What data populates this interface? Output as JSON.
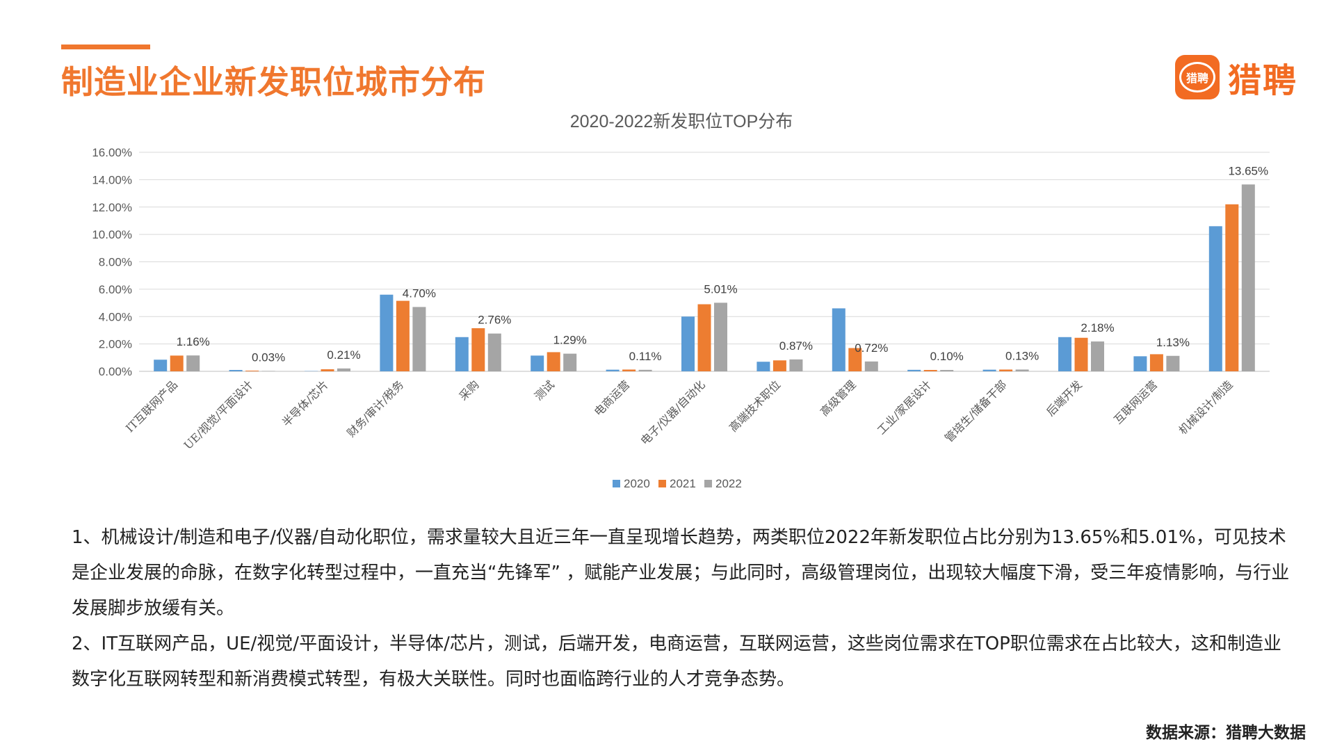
{
  "header": {
    "title": "制造业企业新发职位城市分布",
    "logo_mark": "猎聘",
    "logo_text": "猎聘"
  },
  "chart_data": {
    "type": "bar",
    "title": "2020-2022新发职位TOP分布",
    "xlabel": "",
    "ylabel": "",
    "ylim": [
      0,
      16
    ],
    "y_ticks": [
      "0.00%",
      "2.00%",
      "4.00%",
      "6.00%",
      "8.00%",
      "10.00%",
      "12.00%",
      "14.00%",
      "16.00%"
    ],
    "grid": true,
    "legend": "bottom",
    "categories": [
      "IT互联网产品",
      "UE/视觉/平面设计",
      "半导体/芯片",
      "财务/审计/税务",
      "采购",
      "测试",
      "电商运营",
      "电子/仪器/自动化",
      "高端技术职位",
      "高级管理",
      "工业/家居设计",
      "管培生/储备干部",
      "后端开发",
      "互联网运营",
      "机械设计/制造"
    ],
    "series": [
      {
        "name": "2020",
        "color": "#5b9bd5",
        "values": [
          0.85,
          0.1,
          0.02,
          5.6,
          2.5,
          1.15,
          0.12,
          4.0,
          0.7,
          4.6,
          0.11,
          0.12,
          2.5,
          1.1,
          10.6
        ]
      },
      {
        "name": "2021",
        "color": "#ed7d31",
        "values": [
          1.15,
          0.05,
          0.15,
          5.15,
          3.15,
          1.4,
          0.13,
          4.9,
          0.8,
          1.7,
          0.1,
          0.13,
          2.45,
          1.25,
          12.2
        ]
      },
      {
        "name": "2022",
        "color": "#a5a5a5",
        "values": [
          1.16,
          0.03,
          0.21,
          4.7,
          2.76,
          1.29,
          0.11,
          5.01,
          0.87,
          0.72,
          0.1,
          0.13,
          2.18,
          1.13,
          13.65
        ]
      }
    ],
    "data_labels": [
      "1.16%",
      "0.03%",
      "0.21%",
      "4.70%",
      "2.76%",
      "1.29%",
      "0.11%",
      "5.01%",
      "0.87%",
      "0.72%",
      "0.10%",
      "0.13%",
      "2.18%",
      "1.13%",
      "13.65%"
    ]
  },
  "notes": [
    "1、机械设计/制造和电子/仪器/自动化职位，需求量较大且近三年一直呈现增长趋势，两类职位2022年新发职位占比分别为13.65%和5.01%，可见技术是企业发展的命脉，在数字化转型过程中，一直充当“先锋军” ，赋能产业发展；与此同时，高级管理岗位，出现较大幅度下滑，受三年疫情影响，与行业发展脚步放缓有关。",
    "2、IT互联网产品，UE/视觉/平面设计，半导体/芯片，测试，后端开发，电商运营，互联网运营，这些岗位需求在TOP职位需求在占比较大，这和制造业数字化互联网转型和新消费模式转型，有极大关联性。同时也面临跨行业的人才竞争态势。"
  ],
  "source": "数据来源：猎聘大数据"
}
